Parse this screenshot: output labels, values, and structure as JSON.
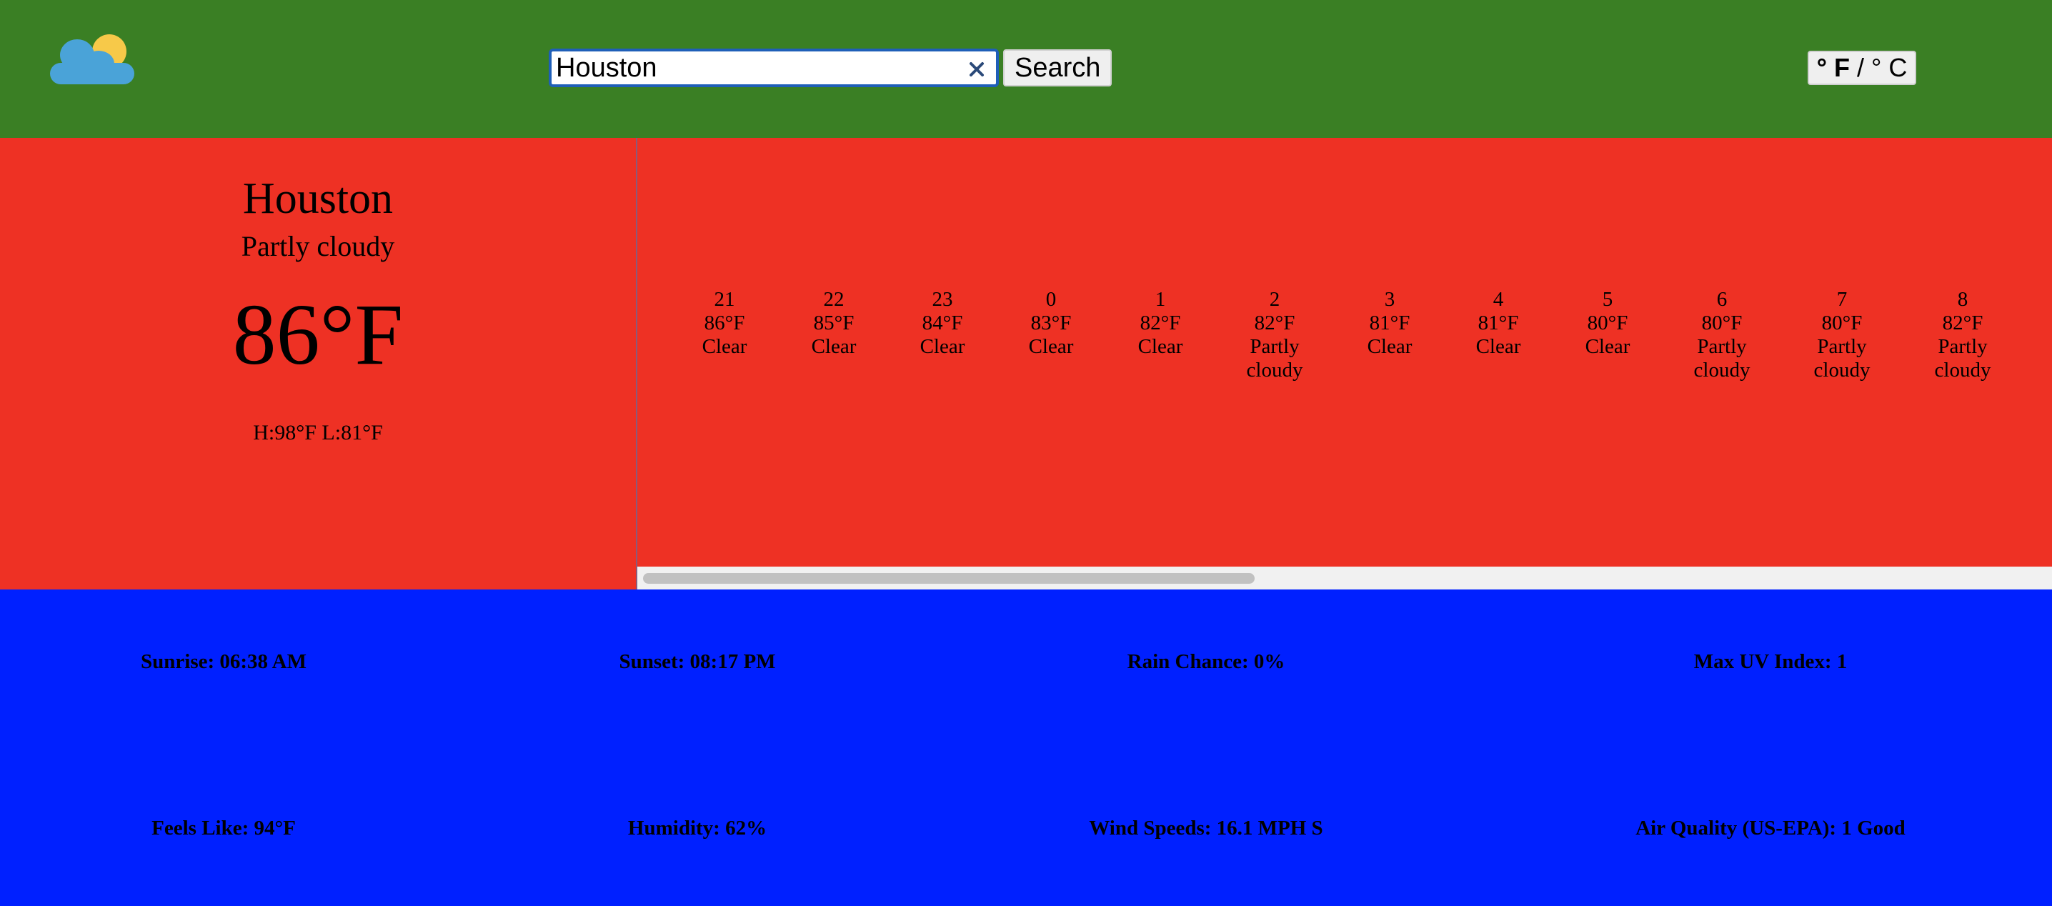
{
  "header": {
    "logo_icon": "partly-cloudy-icon",
    "search": {
      "value": "Houston",
      "placeholder": ""
    },
    "clear_icon": "close-icon",
    "search_button_label": "Search",
    "unit_toggle": {
      "fahrenheit": "° F",
      "separator": "/",
      "celsius": "° C",
      "active": "F"
    }
  },
  "current": {
    "city": "Houston",
    "condition": "Partly cloudy",
    "temperature": "86°F",
    "high_low": "H:98°F L:81°F"
  },
  "hourly": [
    {
      "hour": "21",
      "temp": "86°F",
      "condition": "Clear"
    },
    {
      "hour": "22",
      "temp": "85°F",
      "condition": "Clear"
    },
    {
      "hour": "23",
      "temp": "84°F",
      "condition": "Clear"
    },
    {
      "hour": "0",
      "temp": "83°F",
      "condition": "Clear"
    },
    {
      "hour": "1",
      "temp": "82°F",
      "condition": "Clear"
    },
    {
      "hour": "2",
      "temp": "82°F",
      "condition": "Partly cloudy"
    },
    {
      "hour": "3",
      "temp": "81°F",
      "condition": "Clear"
    },
    {
      "hour": "4",
      "temp": "81°F",
      "condition": "Clear"
    },
    {
      "hour": "5",
      "temp": "80°F",
      "condition": "Clear"
    },
    {
      "hour": "6",
      "temp": "80°F",
      "condition": "Partly cloudy"
    },
    {
      "hour": "7",
      "temp": "80°F",
      "condition": "Partly cloudy"
    },
    {
      "hour": "8",
      "temp": "82°F",
      "condition": "Partly cloudy"
    }
  ],
  "details": {
    "sunrise": "Sunrise: 06:38 AM",
    "sunset": "Sunset: 08:17 PM",
    "rain_chance": "Rain Chance: 0%",
    "max_uv": "Max UV Index: 1",
    "feels_like": "Feels Like: 94°F",
    "humidity": "Humidity: 62%",
    "wind": "Wind Speeds: 16.1 MPH S",
    "air_quality": "Air Quality (US-EPA): 1 Good"
  },
  "colors": {
    "header_bg": "#3a7f24",
    "current_bg": "#ee3124",
    "details_bg": "#0020ff"
  }
}
